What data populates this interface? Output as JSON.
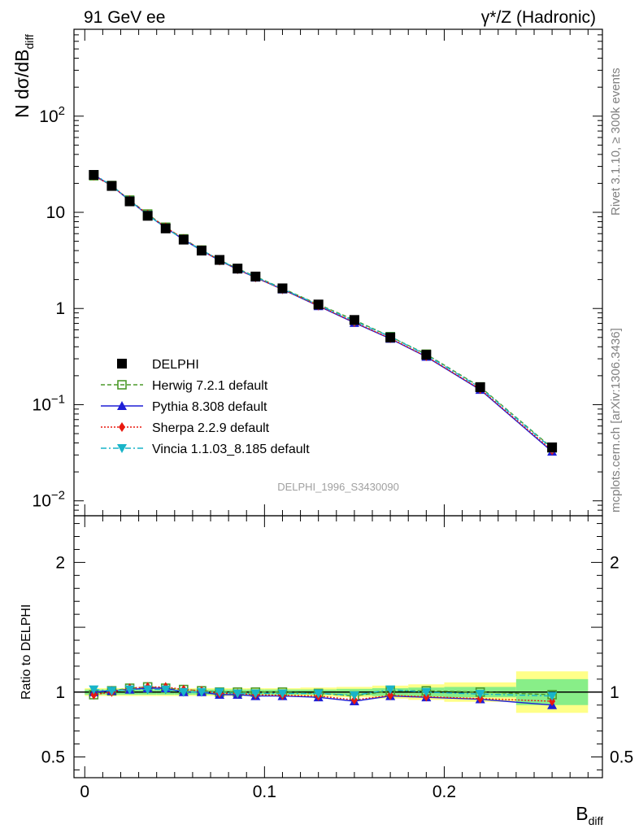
{
  "header": {
    "left": "91 GeV ee",
    "right": "γ*/Z (Hadronic)"
  },
  "side_text": {
    "top": "Rivet 3.1.10, ≥ 300k events",
    "bottom": "mcplots.cern.ch [arXiv:1306.3436]"
  },
  "watermark": "DELPHI_1996_S3430090",
  "chart_data": [
    {
      "type": "line",
      "panel": "main",
      "yscale": "log",
      "ylabel": "N dσ/dB_diff",
      "ylim": [
        0.007,
        800
      ],
      "xlim": [
        -0.006,
        0.288
      ],
      "y_ticks": [
        "10^-2",
        "10^-1",
        "1",
        "10",
        "10^2"
      ],
      "x": [
        0.005,
        0.015,
        0.025,
        0.035,
        0.045,
        0.055,
        0.065,
        0.075,
        0.085,
        0.095,
        0.11,
        0.13,
        0.15,
        0.17,
        0.19,
        0.22,
        0.26
      ],
      "series": [
        {
          "name": "DELPHI",
          "values": [
            24.5,
            18.8,
            13.0,
            9.2,
            6.8,
            5.2,
            4.0,
            3.2,
            2.6,
            2.15,
            1.62,
            1.1,
            0.76,
            0.5,
            0.33,
            0.152,
            0.036
          ]
        },
        {
          "name": "Herwig 7.2.1 default",
          "values": [
            24.0,
            19.0,
            13.4,
            9.6,
            7.0,
            5.3,
            4.05,
            3.2,
            2.6,
            2.15,
            1.62,
            1.1,
            0.76,
            0.51,
            0.335,
            0.153,
            0.0355
          ]
        },
        {
          "name": "Pythia 8.308 default",
          "values": [
            24.5,
            18.9,
            13.2,
            9.4,
            6.9,
            5.2,
            4.0,
            3.15,
            2.55,
            2.1,
            1.58,
            1.06,
            0.71,
            0.485,
            0.315,
            0.143,
            0.0325
          ]
        },
        {
          "name": "Sherpa 2.2.9 default",
          "values": [
            24.0,
            18.9,
            13.4,
            9.5,
            7.0,
            5.3,
            4.05,
            3.15,
            2.55,
            2.1,
            1.58,
            1.07,
            0.72,
            0.49,
            0.318,
            0.145,
            0.0335
          ]
        },
        {
          "name": "Vincia 1.1.03_8.185 default",
          "values": [
            24.9,
            19.0,
            13.3,
            9.4,
            6.9,
            5.2,
            4.05,
            3.2,
            2.57,
            2.13,
            1.6,
            1.09,
            0.74,
            0.51,
            0.33,
            0.15,
            0.035
          ]
        }
      ],
      "legend": [
        {
          "label": "DELPHI",
          "color": "#000000",
          "marker": "square-filled",
          "style": "none"
        },
        {
          "label": "Herwig 7.2.1 default",
          "color": "#4c9a2a",
          "marker": "square-open",
          "style": "dashed"
        },
        {
          "label": "Pythia 8.308 default",
          "color": "#1f1fd6",
          "marker": "triangle-up",
          "style": "solid"
        },
        {
          "label": "Sherpa 2.2.9 default",
          "color": "#e8190f",
          "marker": "diamond",
          "style": "dotted"
        },
        {
          "label": "Vincia 1.1.03_8.185 default",
          "color": "#18b4c8",
          "marker": "triangle-down",
          "style": "dashdot"
        }
      ],
      "legend_position": "lower-left"
    },
    {
      "type": "line",
      "panel": "ratio",
      "ylabel": "Ratio to DELPHI",
      "xlabel": "B_diff",
      "ylim": [
        0.34,
        2.36
      ],
      "y_ticks": [
        "0.5",
        "1",
        "2"
      ],
      "x_ticks": [
        "0",
        "0.1",
        "0.2"
      ],
      "x": [
        0.005,
        0.015,
        0.025,
        0.035,
        0.045,
        0.055,
        0.065,
        0.075,
        0.085,
        0.095,
        0.11,
        0.13,
        0.15,
        0.17,
        0.19,
        0.22,
        0.26
      ],
      "uncertainty_bands": {
        "edges": [
          0,
          0.01,
          0.02,
          0.03,
          0.04,
          0.05,
          0.06,
          0.07,
          0.08,
          0.09,
          0.1,
          0.12,
          0.14,
          0.16,
          0.18,
          0.2,
          0.24,
          0.28
        ],
        "inner": [
          0.02,
          0.02,
          0.02,
          0.02,
          0.02,
          0.02,
          0.02,
          0.02,
          0.02,
          0.02,
          0.02,
          0.02,
          0.025,
          0.03,
          0.035,
          0.04,
          0.1
        ],
        "outer": [
          0.03,
          0.03,
          0.03,
          0.03,
          0.03,
          0.03,
          0.03,
          0.03,
          0.03,
          0.03,
          0.03,
          0.035,
          0.04,
          0.05,
          0.06,
          0.075,
          0.16
        ],
        "inner_color": "#88ee88",
        "outer_color": "#ffff88"
      },
      "series": [
        {
          "name": "Herwig 7.2.1 default",
          "values": [
            0.98,
            1.01,
            1.03,
            1.04,
            1.03,
            1.02,
            1.01,
            1.0,
            1.0,
            1.0,
            1.0,
            0.99,
            0.97,
            1.01,
            1.01,
            1.0,
            0.98
          ]
        },
        {
          "name": "Pythia 8.308 default",
          "values": [
            1.0,
            1.01,
            1.02,
            1.03,
            1.03,
            1.0,
            1.0,
            0.98,
            0.98,
            0.97,
            0.97,
            0.96,
            0.93,
            0.97,
            0.96,
            0.945,
            0.9
          ]
        },
        {
          "name": "Sherpa 2.2.9 default",
          "values": [
            0.98,
            1.0,
            1.03,
            1.04,
            1.04,
            1.02,
            1.01,
            0.99,
            0.99,
            0.98,
            0.975,
            0.97,
            0.94,
            0.975,
            0.965,
            0.95,
            0.93
          ]
        },
        {
          "name": "Vincia 1.1.03_8.185 default",
          "values": [
            1.02,
            1.01,
            1.02,
            1.02,
            1.02,
            1.0,
            1.0,
            1.0,
            0.99,
            0.99,
            0.99,
            0.99,
            0.975,
            1.02,
            1.0,
            0.985,
            0.97
          ]
        }
      ]
    }
  ]
}
